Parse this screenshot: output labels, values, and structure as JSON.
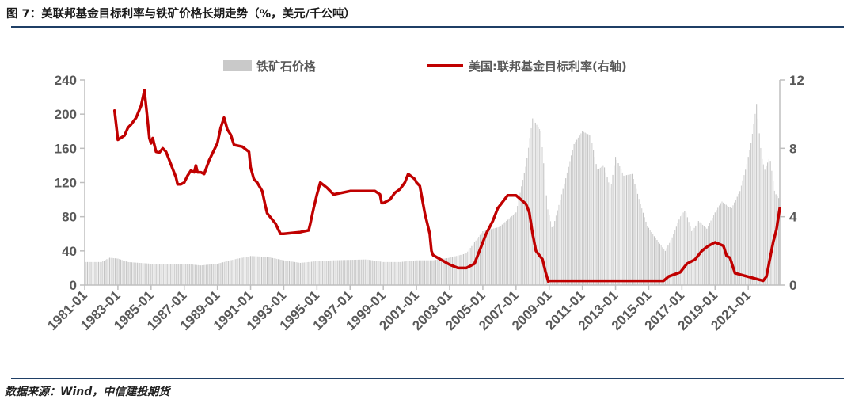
{
  "header": {
    "title": "图 7：美联邦基金目标利率与铁矿价格长期走势（%，美元/千公吨）"
  },
  "footer": {
    "source": "数据来源：Wind，中信建投期货"
  },
  "colors": {
    "bars": "#c9c9c9",
    "line": "#c00000",
    "axis": "#bfbfbf",
    "rule": "#1f3f66",
    "text": "#595959"
  },
  "chart_data": {
    "type": "bar+line",
    "legend": {
      "placement": "top",
      "bar_label": "铁矿石价格",
      "line_label": "美国:联邦基金目标利率(右轴)"
    },
    "x_ticks": [
      "1981-01",
      "1983-01",
      "1985-01",
      "1987-01",
      "1989-01",
      "1991-01",
      "1993-01",
      "1995-01",
      "1997-01",
      "1999-01",
      "2001-01",
      "2003-01",
      "2005-01",
      "2007-01",
      "2009-01",
      "2011-01",
      "2013-01",
      "2015-01",
      "2017-01",
      "2019-01",
      "2021-01"
    ],
    "x_range": [
      1981.0,
      2022.9
    ],
    "y_left": {
      "ticks": [
        0,
        40,
        80,
        120,
        160,
        200,
        240
      ],
      "range": [
        0,
        240
      ]
    },
    "y_right": {
      "ticks": [
        0,
        4,
        8,
        12
      ],
      "range": [
        0,
        12
      ]
    },
    "series": [
      {
        "name": "铁矿石价格",
        "axis": "left",
        "kind": "bar",
        "points": [
          [
            1981.0,
            27
          ],
          [
            1982.0,
            27
          ],
          [
            1982.5,
            32
          ],
          [
            1983.0,
            31
          ],
          [
            1983.6,
            27
          ],
          [
            1985.0,
            25
          ],
          [
            1987.0,
            25
          ],
          [
            1988.0,
            23
          ],
          [
            1989.0,
            25
          ],
          [
            1990.0,
            30
          ],
          [
            1991.0,
            34
          ],
          [
            1992.0,
            33
          ],
          [
            1993.0,
            29
          ],
          [
            1994.0,
            26
          ],
          [
            1995.0,
            28
          ],
          [
            1996.0,
            29
          ],
          [
            1998.0,
            30
          ],
          [
            1999.0,
            27
          ],
          [
            2000.0,
            27
          ],
          [
            2001.0,
            29
          ],
          [
            2002.0,
            29
          ],
          [
            2003.0,
            32
          ],
          [
            2004.0,
            37
          ],
          [
            2005.0,
            63
          ],
          [
            2006.0,
            68
          ],
          [
            2007.0,
            85
          ],
          [
            2007.6,
            140
          ],
          [
            2008.0,
            195
          ],
          [
            2008.5,
            180
          ],
          [
            2008.9,
            90
          ],
          [
            2009.2,
            65
          ],
          [
            2009.6,
            95
          ],
          [
            2010.0,
            125
          ],
          [
            2010.5,
            165
          ],
          [
            2011.0,
            180
          ],
          [
            2011.5,
            175
          ],
          [
            2011.9,
            135
          ],
          [
            2012.3,
            140
          ],
          [
            2012.7,
            112
          ],
          [
            2013.0,
            150
          ],
          [
            2013.5,
            128
          ],
          [
            2014.0,
            130
          ],
          [
            2014.5,
            95
          ],
          [
            2014.9,
            70
          ],
          [
            2015.3,
            58
          ],
          [
            2015.8,
            45
          ],
          [
            2016.0,
            40
          ],
          [
            2016.4,
            55
          ],
          [
            2016.9,
            80
          ],
          [
            2017.2,
            88
          ],
          [
            2017.6,
            62
          ],
          [
            2018.0,
            75
          ],
          [
            2018.5,
            66
          ],
          [
            2019.0,
            85
          ],
          [
            2019.4,
            98
          ],
          [
            2019.8,
            92
          ],
          [
            2020.0,
            90
          ],
          [
            2020.5,
            110
          ],
          [
            2020.9,
            140
          ],
          [
            2021.2,
            170
          ],
          [
            2021.5,
            212
          ],
          [
            2021.8,
            150
          ],
          [
            2022.0,
            135
          ],
          [
            2022.3,
            150
          ],
          [
            2022.6,
            108
          ],
          [
            2022.9,
            100
          ]
        ]
      },
      {
        "name": "美国:联邦基金目标利率(右轴)",
        "axis": "right",
        "kind": "line",
        "points": [
          [
            1982.8,
            10.2
          ],
          [
            1983.0,
            8.5
          ],
          [
            1983.4,
            8.75
          ],
          [
            1983.6,
            9.2
          ],
          [
            1983.8,
            9.4
          ],
          [
            1984.1,
            9.8
          ],
          [
            1984.4,
            10.5
          ],
          [
            1984.6,
            11.4
          ],
          [
            1984.75,
            10.0
          ],
          [
            1984.9,
            8.6
          ],
          [
            1985.0,
            8.3
          ],
          [
            1985.1,
            8.6
          ],
          [
            1985.3,
            7.8
          ],
          [
            1985.5,
            7.75
          ],
          [
            1985.7,
            8.0
          ],
          [
            1985.9,
            7.8
          ],
          [
            1986.1,
            7.3
          ],
          [
            1986.3,
            6.8
          ],
          [
            1986.5,
            6.3
          ],
          [
            1986.6,
            5.9
          ],
          [
            1986.8,
            5.9
          ],
          [
            1987.0,
            6.0
          ],
          [
            1987.2,
            6.4
          ],
          [
            1987.4,
            6.7
          ],
          [
            1987.6,
            6.6
          ],
          [
            1987.7,
            7.0
          ],
          [
            1987.8,
            6.6
          ],
          [
            1988.0,
            6.6
          ],
          [
            1988.2,
            6.5
          ],
          [
            1988.5,
            7.3
          ],
          [
            1988.8,
            7.9
          ],
          [
            1989.0,
            8.3
          ],
          [
            1989.2,
            9.2
          ],
          [
            1989.4,
            9.8
          ],
          [
            1989.6,
            9.1
          ],
          [
            1989.8,
            8.8
          ],
          [
            1990.0,
            8.2
          ],
          [
            1990.5,
            8.1
          ],
          [
            1990.9,
            7.8
          ],
          [
            1991.0,
            6.9
          ],
          [
            1991.2,
            6.2
          ],
          [
            1991.4,
            6.0
          ],
          [
            1991.7,
            5.5
          ],
          [
            1991.9,
            4.6
          ],
          [
            1992.0,
            4.2
          ],
          [
            1992.5,
            3.6
          ],
          [
            1992.8,
            3.0
          ],
          [
            1993.0,
            3.0
          ],
          [
            1994.0,
            3.1
          ],
          [
            1994.5,
            3.2
          ],
          [
            1994.6,
            3.6
          ],
          [
            1994.8,
            4.5
          ],
          [
            1995.0,
            5.3
          ],
          [
            1995.2,
            6.0
          ],
          [
            1995.6,
            5.7
          ],
          [
            1995.9,
            5.4
          ],
          [
            1996.0,
            5.3
          ],
          [
            1997.0,
            5.5
          ],
          [
            1998.5,
            5.5
          ],
          [
            1998.8,
            5.3
          ],
          [
            1998.9,
            4.8
          ],
          [
            1999.0,
            4.8
          ],
          [
            1999.4,
            5.0
          ],
          [
            1999.7,
            5.4
          ],
          [
            2000.0,
            5.6
          ],
          [
            2000.3,
            6.0
          ],
          [
            2000.5,
            6.5
          ],
          [
            2000.9,
            6.2
          ],
          [
            2001.0,
            6.0
          ],
          [
            2001.2,
            5.8
          ],
          [
            2001.5,
            4.2
          ],
          [
            2001.7,
            3.4
          ],
          [
            2001.8,
            3.0
          ],
          [
            2001.9,
            2.0
          ],
          [
            2002.0,
            1.75
          ],
          [
            2003.0,
            1.2
          ],
          [
            2003.5,
            1.0
          ],
          [
            2004.0,
            1.0
          ],
          [
            2004.5,
            1.25
          ],
          [
            2004.8,
            2.0
          ],
          [
            2005.2,
            3.0
          ],
          [
            2005.6,
            3.75
          ],
          [
            2005.9,
            4.5
          ],
          [
            2006.3,
            5.0
          ],
          [
            2006.5,
            5.25
          ],
          [
            2007.0,
            5.25
          ],
          [
            2007.6,
            4.75
          ],
          [
            2007.8,
            4.25
          ],
          [
            2008.0,
            3.0
          ],
          [
            2008.2,
            2.0
          ],
          [
            2008.6,
            1.5
          ],
          [
            2008.8,
            0.7
          ],
          [
            2008.95,
            0.2
          ],
          [
            2009.0,
            0.25
          ],
          [
            2015.9,
            0.25
          ],
          [
            2016.2,
            0.5
          ],
          [
            2016.9,
            0.75
          ],
          [
            2017.3,
            1.25
          ],
          [
            2017.8,
            1.5
          ],
          [
            2018.2,
            2.0
          ],
          [
            2018.6,
            2.3
          ],
          [
            2019.0,
            2.5
          ],
          [
            2019.5,
            2.3
          ],
          [
            2019.7,
            1.7
          ],
          [
            2019.9,
            1.6
          ],
          [
            2020.2,
            0.7
          ],
          [
            2021.9,
            0.25
          ],
          [
            2022.1,
            0.5
          ],
          [
            2022.3,
            1.5
          ],
          [
            2022.5,
            2.5
          ],
          [
            2022.7,
            3.25
          ],
          [
            2022.9,
            4.5
          ]
        ]
      }
    ],
    "grid": false
  }
}
